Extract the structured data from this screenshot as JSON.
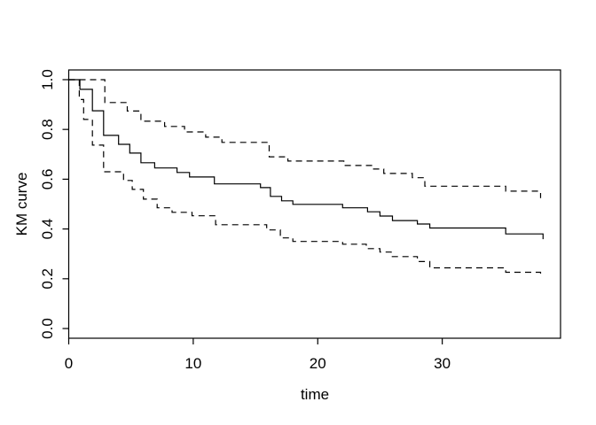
{
  "figure": {
    "background": "#ffffff",
    "colors": {
      "line": "#000000",
      "ci_line": "#000000"
    }
  },
  "chart_data": {
    "type": "line",
    "subtype": "kaplan-meier-step-function",
    "title": "",
    "xlabel": "time",
    "ylabel": "KM curve",
    "xlim": [
      0,
      39.5
    ],
    "ylim": [
      -0.039,
      1.039
    ],
    "x_tick_values": [
      0,
      10,
      20,
      30
    ],
    "x_tick_labels": [
      "0",
      "10",
      "20",
      "30"
    ],
    "y_tick_values": [
      0.0,
      0.2,
      0.4,
      0.6,
      0.8,
      1.0
    ],
    "y_tick_labels": [
      "0.0",
      "0.2",
      "0.4",
      "0.6",
      "0.8",
      "1.0"
    ],
    "grid": false,
    "legend": "none",
    "series": [
      {
        "name": "km-estimate",
        "style": "solid",
        "points": [
          [
            0,
            1.0
          ],
          [
            0.9,
            0.961
          ],
          [
            1.9,
            0.875
          ],
          [
            2.8,
            0.776
          ],
          [
            4.0,
            0.74
          ],
          [
            4.9,
            0.705
          ],
          [
            5.8,
            0.666
          ],
          [
            6.9,
            0.645
          ],
          [
            8.7,
            0.627
          ],
          [
            9.7,
            0.609
          ],
          [
            11.7,
            0.581
          ],
          [
            15.4,
            0.566
          ],
          [
            16.2,
            0.531
          ],
          [
            17.1,
            0.513
          ],
          [
            18.0,
            0.499
          ],
          [
            22.0,
            0.485
          ],
          [
            24.0,
            0.469
          ],
          [
            25.0,
            0.452
          ],
          [
            26.0,
            0.434
          ],
          [
            28.0,
            0.42
          ],
          [
            29.0,
            0.404
          ],
          [
            35.1,
            0.38
          ],
          [
            38.1,
            0.359
          ]
        ]
      },
      {
        "name": "ci-upper",
        "style": "dashed",
        "points": [
          [
            0,
            1.0
          ],
          [
            2.9,
            0.908
          ],
          [
            4.7,
            0.874
          ],
          [
            5.8,
            0.833
          ],
          [
            7.7,
            0.812
          ],
          [
            9.3,
            0.79
          ],
          [
            11.0,
            0.769
          ],
          [
            12.3,
            0.748
          ],
          [
            16.1,
            0.69
          ],
          [
            17.6,
            0.673
          ],
          [
            22.1,
            0.655
          ],
          [
            24.4,
            0.641
          ],
          [
            25.3,
            0.623
          ],
          [
            27.6,
            0.606
          ],
          [
            28.6,
            0.572
          ],
          [
            35.1,
            0.552
          ],
          [
            37.9,
            0.524
          ]
        ]
      },
      {
        "name": "ci-lower",
        "style": "dashed",
        "points": [
          [
            0,
            1.0
          ],
          [
            0.85,
            0.92
          ],
          [
            1.2,
            0.84
          ],
          [
            1.9,
            0.737
          ],
          [
            2.8,
            0.63
          ],
          [
            4.4,
            0.595
          ],
          [
            5.1,
            0.559
          ],
          [
            6.0,
            0.52
          ],
          [
            7.1,
            0.485
          ],
          [
            8.3,
            0.467
          ],
          [
            9.9,
            0.453
          ],
          [
            11.8,
            0.417
          ],
          [
            15.9,
            0.396
          ],
          [
            17.0,
            0.364
          ],
          [
            18.0,
            0.35
          ],
          [
            22.0,
            0.339
          ],
          [
            23.9,
            0.321
          ],
          [
            25.0,
            0.307
          ],
          [
            25.9,
            0.289
          ],
          [
            28.0,
            0.269
          ],
          [
            29.0,
            0.244
          ],
          [
            35.1,
            0.226
          ],
          [
            37.9,
            0.214
          ]
        ]
      }
    ]
  }
}
